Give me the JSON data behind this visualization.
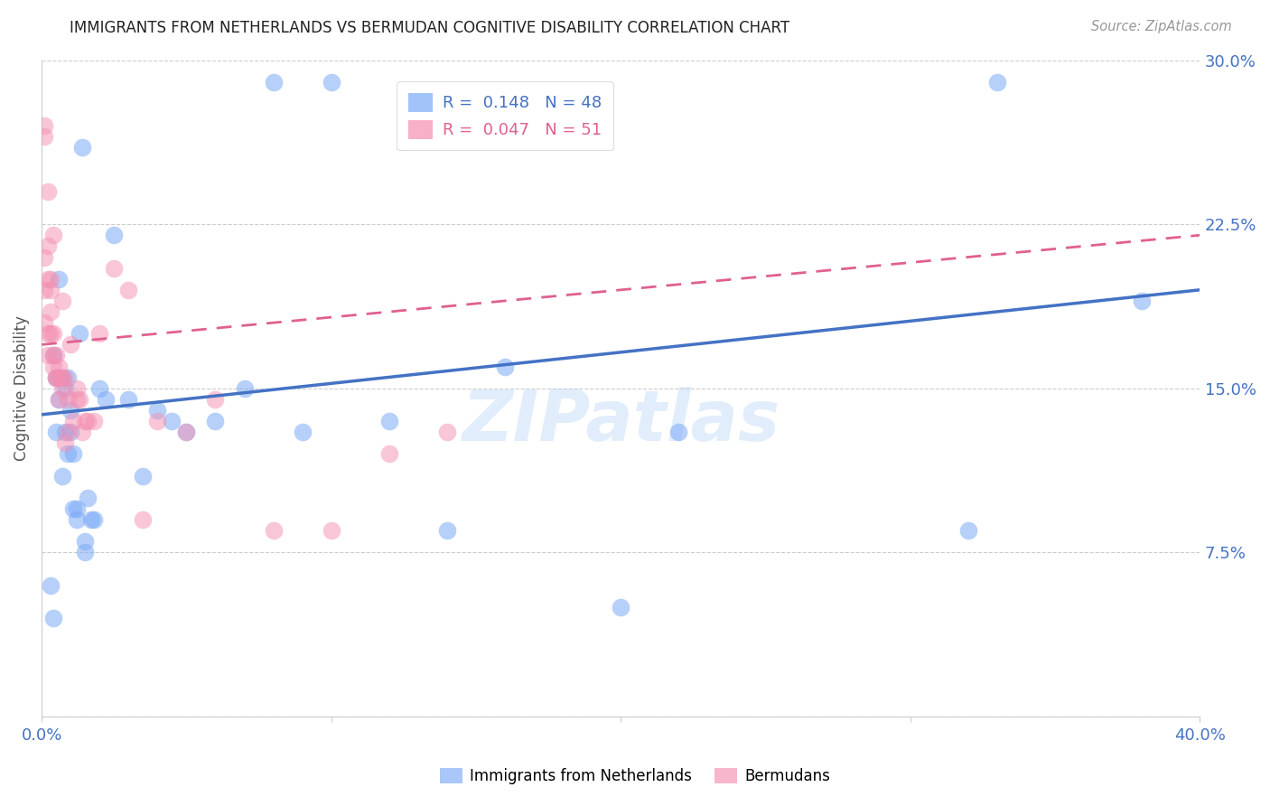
{
  "title": "IMMIGRANTS FROM NETHERLANDS VS BERMUDAN COGNITIVE DISABILITY CORRELATION CHART",
  "source": "Source: ZipAtlas.com",
  "ylabel_label": "Cognitive Disability",
  "x_min": 0.0,
  "x_max": 0.4,
  "y_min": 0.0,
  "y_max": 0.3,
  "y_ticks": [
    0.0,
    0.075,
    0.15,
    0.225,
    0.3
  ],
  "y_tick_labels": [
    "",
    "7.5%",
    "15.0%",
    "22.5%",
    "30.0%"
  ],
  "grid_color": "#cccccc",
  "background_color": "#ffffff",
  "blue_color": "#7baaf7",
  "pink_color": "#f48fb1",
  "blue_line_color": "#4472c4",
  "pink_line_color": "#e06090",
  "legend_r_blue": "0.148",
  "legend_n_blue": "48",
  "legend_r_pink": "0.047",
  "legend_n_pink": "51",
  "legend_label_blue": "Immigrants from Netherlands",
  "legend_label_pink": "Bermudans",
  "watermark": "ZIPatlas",
  "blue_points_x": [
    0.003,
    0.004,
    0.004,
    0.005,
    0.005,
    0.006,
    0.006,
    0.006,
    0.007,
    0.007,
    0.008,
    0.008,
    0.009,
    0.009,
    0.01,
    0.01,
    0.011,
    0.011,
    0.012,
    0.012,
    0.013,
    0.014,
    0.015,
    0.015,
    0.016,
    0.017,
    0.018,
    0.02,
    0.022,
    0.025,
    0.03,
    0.035,
    0.04,
    0.045,
    0.05,
    0.06,
    0.07,
    0.08,
    0.09,
    0.1,
    0.12,
    0.14,
    0.16,
    0.2,
    0.22,
    0.32,
    0.33,
    0.38
  ],
  "blue_points_y": [
    0.06,
    0.045,
    0.165,
    0.155,
    0.13,
    0.155,
    0.145,
    0.2,
    0.155,
    0.11,
    0.15,
    0.13,
    0.155,
    0.12,
    0.14,
    0.13,
    0.095,
    0.12,
    0.09,
    0.095,
    0.175,
    0.26,
    0.08,
    0.075,
    0.1,
    0.09,
    0.09,
    0.15,
    0.145,
    0.22,
    0.145,
    0.11,
    0.14,
    0.135,
    0.13,
    0.135,
    0.15,
    0.29,
    0.13,
    0.29,
    0.135,
    0.085,
    0.16,
    0.05,
    0.13,
    0.085,
    0.29,
    0.19
  ],
  "pink_points_x": [
    0.001,
    0.001,
    0.001,
    0.001,
    0.001,
    0.002,
    0.002,
    0.002,
    0.002,
    0.002,
    0.003,
    0.003,
    0.003,
    0.003,
    0.004,
    0.004,
    0.004,
    0.004,
    0.005,
    0.005,
    0.005,
    0.006,
    0.006,
    0.006,
    0.007,
    0.007,
    0.007,
    0.008,
    0.008,
    0.009,
    0.009,
    0.01,
    0.011,
    0.012,
    0.012,
    0.013,
    0.014,
    0.015,
    0.016,
    0.018,
    0.02,
    0.025,
    0.03,
    0.035,
    0.04,
    0.05,
    0.06,
    0.08,
    0.1,
    0.12,
    0.14
  ],
  "pink_points_y": [
    0.265,
    0.27,
    0.21,
    0.195,
    0.18,
    0.215,
    0.24,
    0.175,
    0.165,
    0.2,
    0.195,
    0.2,
    0.185,
    0.175,
    0.165,
    0.175,
    0.16,
    0.22,
    0.165,
    0.155,
    0.155,
    0.155,
    0.16,
    0.145,
    0.15,
    0.155,
    0.19,
    0.155,
    0.125,
    0.145,
    0.13,
    0.17,
    0.135,
    0.15,
    0.145,
    0.145,
    0.13,
    0.135,
    0.135,
    0.135,
    0.175,
    0.205,
    0.195,
    0.09,
    0.135,
    0.13,
    0.145,
    0.085,
    0.085,
    0.12,
    0.13
  ],
  "blue_trend_start_y": 0.138,
  "blue_trend_end_y": 0.195,
  "pink_trend_start_y": 0.17,
  "pink_trend_end_y": 0.22
}
